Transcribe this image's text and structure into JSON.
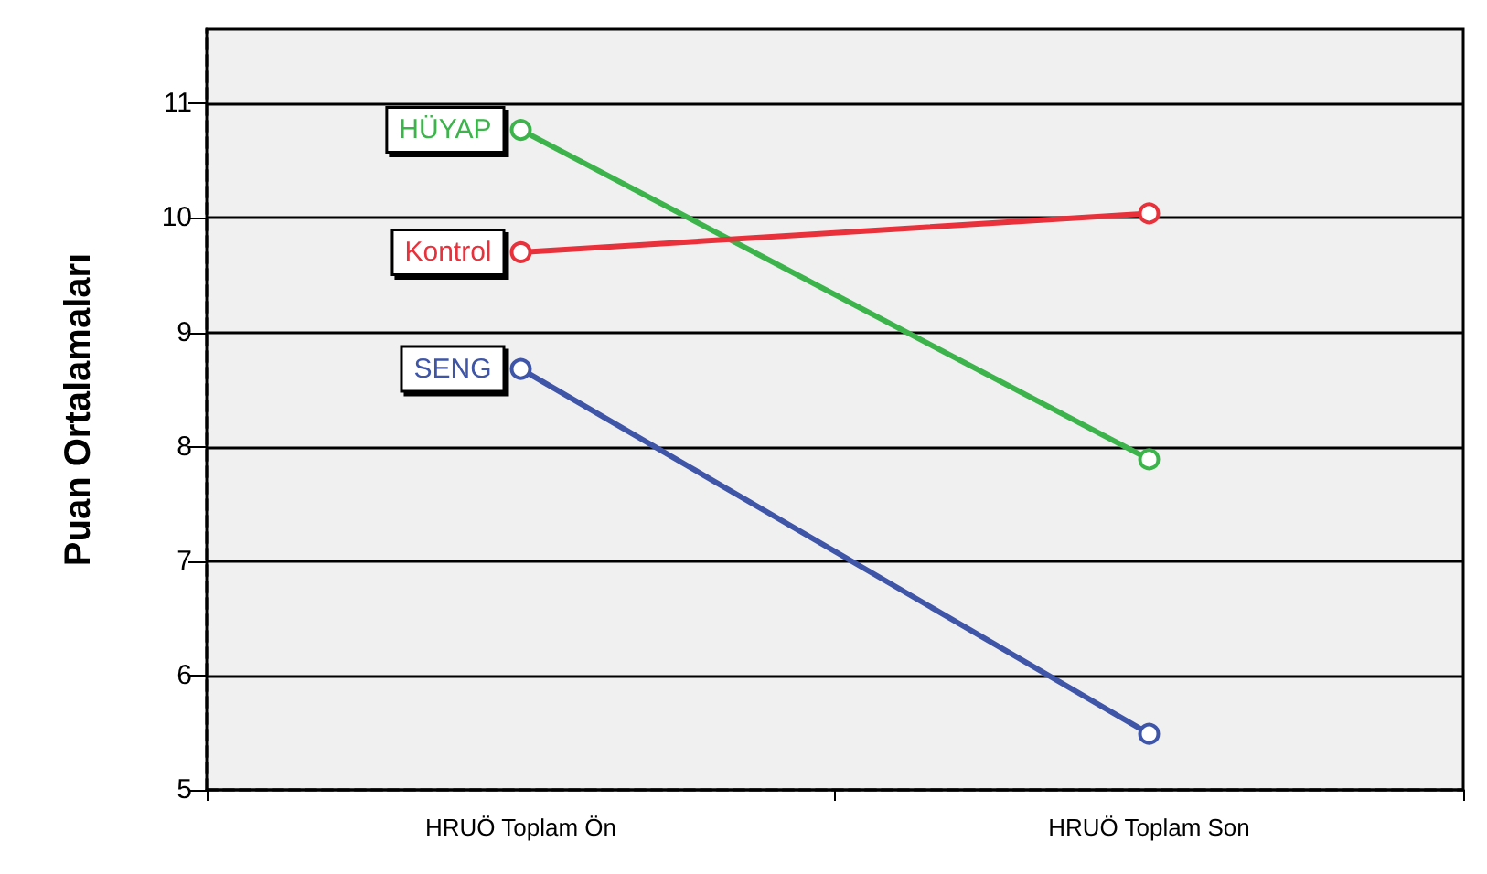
{
  "chart_data": {
    "type": "line",
    "ylabel": "Puan Ortalamaları",
    "categories": [
      "HRUÖ Toplam Ön",
      "HRUÖ Toplam Son"
    ],
    "series": [
      {
        "name": "HÜYAP",
        "color": "#3cb44b",
        "values": [
          10.77,
          7.89
        ]
      },
      {
        "name": "Kontrol",
        "color": "#e8313a",
        "values": [
          9.7,
          10.04
        ]
      },
      {
        "name": "SENG",
        "color": "#3f56a8",
        "values": [
          8.68,
          5.49
        ]
      }
    ],
    "ylim": [
      5,
      11.65
    ],
    "yticks": [
      5,
      6,
      7,
      8,
      9,
      10,
      11
    ],
    "grid": "y",
    "legend": false,
    "marker": "circle",
    "line_style": "solid"
  }
}
